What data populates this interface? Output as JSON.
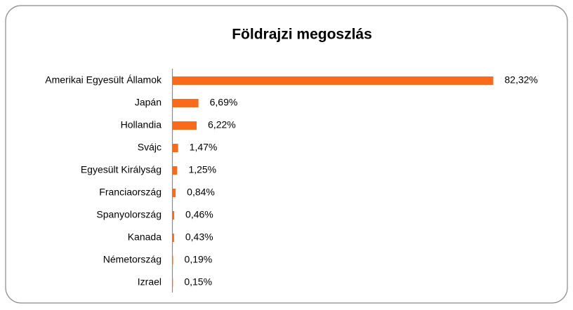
{
  "chart_data": {
    "type": "bar",
    "orientation": "horizontal",
    "title": "Földrajzi megoszlás",
    "categories": [
      "Amerikai Egyesült Államok",
      "Japán",
      "Hollandia",
      "Svájc",
      "Egyesült Királyság",
      "Franciaország",
      "Spanyolország",
      "Kanada",
      "Németország",
      "Izrael"
    ],
    "values": [
      82.32,
      6.69,
      6.22,
      1.47,
      1.25,
      0.84,
      0.46,
      0.43,
      0.19,
      0.15
    ],
    "value_labels": [
      "82,32%",
      "6,69%",
      "6,22%",
      "1,47%",
      "1,25%",
      "0,84%",
      "0,46%",
      "0,43%",
      "0,19%",
      "0,15%"
    ],
    "color": "#f96b1a"
  }
}
